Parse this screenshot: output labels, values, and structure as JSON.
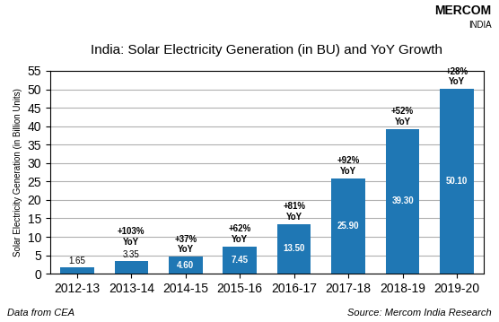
{
  "chart_data": {
    "type": "bar",
    "title": "India: Solar Electricity Generation (in BU) and YoY Growth",
    "ylabel": "Solar Electricity Generation (in Billion Units)",
    "categories": [
      "2012-13",
      "2013-14",
      "2014-15",
      "2015-16",
      "2016-17",
      "2017-18",
      "2018-19",
      "2019-20"
    ],
    "values": [
      1.65,
      3.35,
      4.6,
      7.45,
      13.5,
      25.9,
      39.3,
      50.1
    ],
    "value_labels": [
      "1.65",
      "3.35",
      "4.60",
      "7.45",
      "13.50",
      "25.90",
      "39.30",
      "50.10"
    ],
    "data_labels": true,
    "annotations": [
      {
        "category": "2013-14",
        "text": "+103%\nYoY"
      },
      {
        "category": "2014-15",
        "text": "+37%\nYoY"
      },
      {
        "category": "2015-16",
        "text": "+62%\nYoY"
      },
      {
        "category": "2016-17",
        "text": "+81%\nYoY"
      },
      {
        "category": "2017-18",
        "text": "+92%\nYoY"
      },
      {
        "category": "2018-19",
        "text": "+52%\nYoY"
      },
      {
        "category": "2019-20",
        "text": "+28%\nYoY"
      }
    ],
    "logo": "MERCOM",
    "logo_subtitle": "INDIA",
    "note": "Data from CEA",
    "source": "Source: Mercom India Research",
    "ylim": [
      0,
      55
    ],
    "yticks": [
      0,
      5,
      10,
      15,
      20,
      25,
      30,
      35,
      40,
      45,
      50,
      55
    ],
    "grid": true
  }
}
